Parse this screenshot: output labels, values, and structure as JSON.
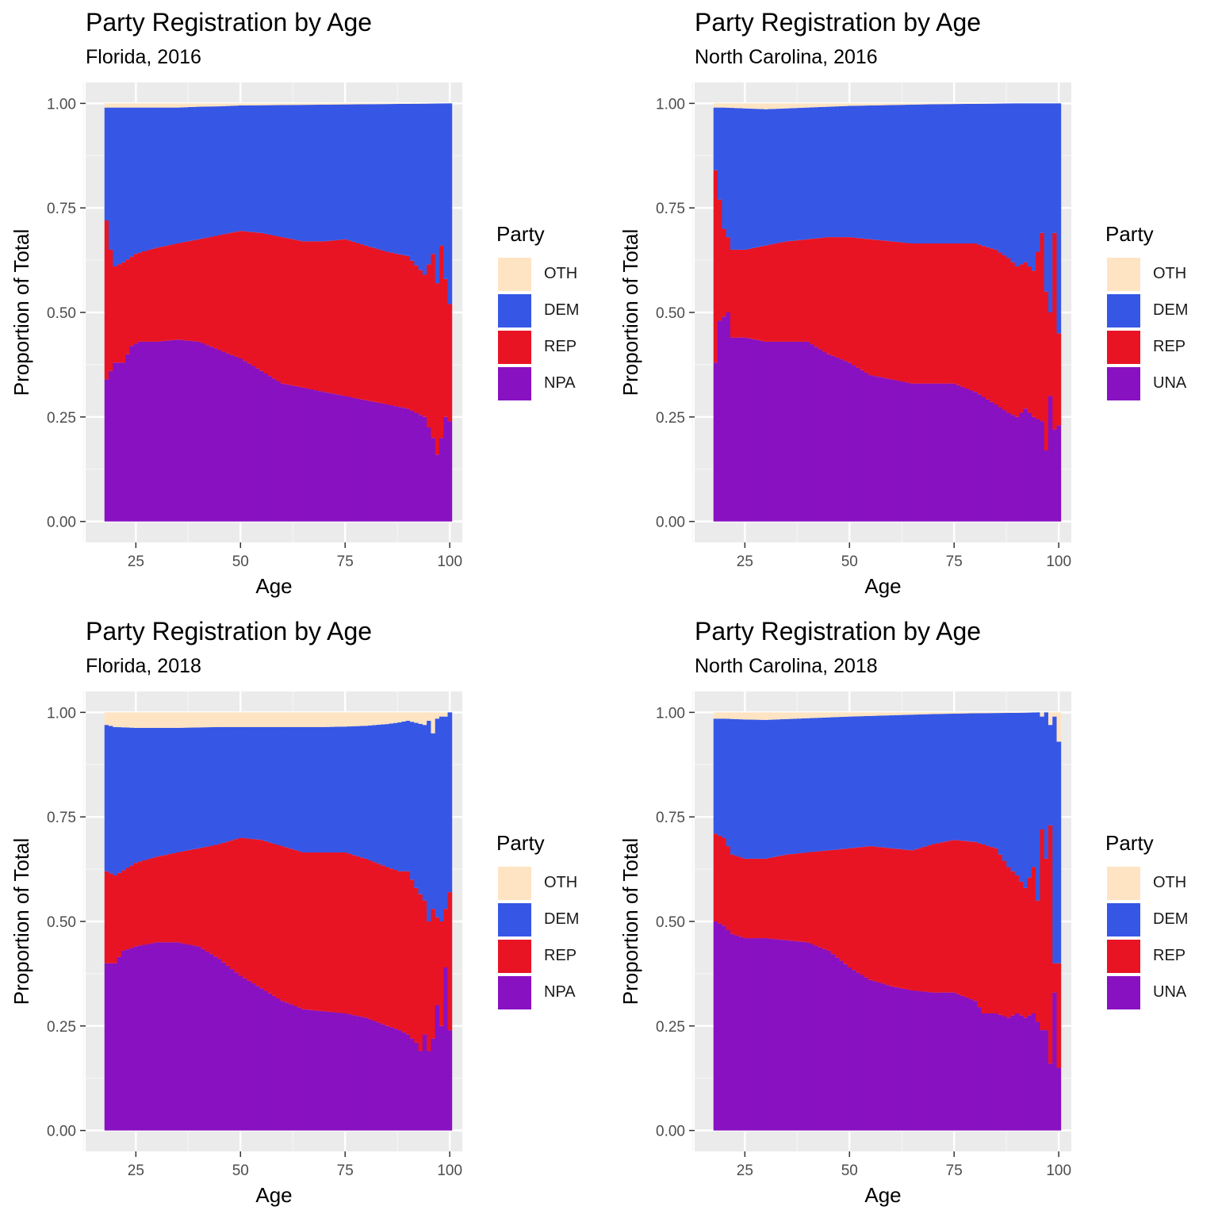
{
  "colors": {
    "OTH": "#FFE4C4",
    "DEM": "#3657E6",
    "REP": "#E81424",
    "NPA": "#8811C2",
    "UNA": "#8811C2"
  },
  "chart_data": [
    {
      "type": "bar",
      "stacked": true,
      "normalized": true,
      "title": "Party Registration by Age",
      "subtitle": "Florida, 2016",
      "xlabel": "Age",
      "ylabel": "Proportion of Total",
      "xlim": [
        13,
        103
      ],
      "ylim": [
        -0.05,
        1.05
      ],
      "xticks": [
        "25",
        "50",
        "75",
        "100"
      ],
      "yticks": [
        "0.00",
        "0.25",
        "0.50",
        "0.75",
        "1.00"
      ],
      "legend_title": "Party",
      "legend_position": "right",
      "legend": [
        "OTH",
        "DEM",
        "REP",
        "NPA"
      ],
      "stack_order_bottom_to_top": [
        "NPA",
        "REP",
        "DEM",
        "OTH"
      ],
      "x_range": [
        18,
        100
      ],
      "boundaries": {
        "first": [
          [
            18,
            0.34
          ],
          [
            20,
            0.38
          ],
          [
            22,
            0.38
          ],
          [
            24,
            0.42
          ],
          [
            26,
            0.43
          ],
          [
            30,
            0.43
          ],
          [
            35,
            0.435
          ],
          [
            40,
            0.43
          ],
          [
            45,
            0.41
          ],
          [
            50,
            0.39
          ],
          [
            55,
            0.36
          ],
          [
            60,
            0.33
          ],
          [
            65,
            0.32
          ],
          [
            70,
            0.31
          ],
          [
            75,
            0.3
          ],
          [
            80,
            0.29
          ],
          [
            85,
            0.28
          ],
          [
            90,
            0.27
          ],
          [
            94,
            0.25
          ],
          [
            96,
            0.2
          ],
          [
            97,
            0.16
          ],
          [
            98,
            0.2
          ],
          [
            99,
            0.25
          ],
          [
            100,
            0.24
          ]
        ],
        "second": [
          [
            18,
            0.72
          ],
          [
            19,
            0.65
          ],
          [
            20,
            0.61
          ],
          [
            22,
            0.62
          ],
          [
            25,
            0.64
          ],
          [
            30,
            0.655
          ],
          [
            35,
            0.665
          ],
          [
            40,
            0.675
          ],
          [
            45,
            0.685
          ],
          [
            50,
            0.695
          ],
          [
            55,
            0.69
          ],
          [
            60,
            0.68
          ],
          [
            65,
            0.67
          ],
          [
            70,
            0.67
          ],
          [
            75,
            0.675
          ],
          [
            80,
            0.66
          ],
          [
            85,
            0.645
          ],
          [
            90,
            0.635
          ],
          [
            94,
            0.59
          ],
          [
            96,
            0.64
          ],
          [
            97,
            0.57
          ],
          [
            98,
            0.66
          ],
          [
            99,
            0.58
          ],
          [
            100,
            0.52
          ]
        ],
        "third": [
          [
            18,
            0.99
          ],
          [
            20,
            0.99
          ],
          [
            25,
            0.99
          ],
          [
            30,
            0.99
          ],
          [
            35,
            0.99
          ],
          [
            40,
            0.992
          ],
          [
            45,
            0.993
          ],
          [
            50,
            0.995
          ],
          [
            60,
            0.996
          ],
          [
            70,
            0.997
          ],
          [
            80,
            0.998
          ],
          [
            90,
            0.999
          ],
          [
            100,
            1.0
          ]
        ]
      }
    },
    {
      "type": "bar",
      "stacked": true,
      "normalized": true,
      "title": "Party Registration by Age",
      "subtitle": "North Carolina, 2016",
      "xlabel": "Age",
      "ylabel": "Proportion of Total",
      "xlim": [
        13,
        103
      ],
      "ylim": [
        -0.05,
        1.05
      ],
      "xticks": [
        "25",
        "50",
        "75",
        "100"
      ],
      "yticks": [
        "0.00",
        "0.25",
        "0.50",
        "0.75",
        "1.00"
      ],
      "legend_title": "Party",
      "legend_position": "right",
      "legend": [
        "OTH",
        "DEM",
        "REP",
        "UNA"
      ],
      "stack_order_bottom_to_top": [
        "UNA",
        "REP",
        "DEM",
        "OTH"
      ],
      "x_range": [
        18,
        100
      ],
      "boundaries": {
        "first": [
          [
            18,
            0.38
          ],
          [
            19,
            0.48
          ],
          [
            20,
            0.49
          ],
          [
            21,
            0.5
          ],
          [
            22,
            0.44
          ],
          [
            25,
            0.44
          ],
          [
            30,
            0.43
          ],
          [
            35,
            0.43
          ],
          [
            40,
            0.43
          ],
          [
            45,
            0.4
          ],
          [
            50,
            0.38
          ],
          [
            55,
            0.35
          ],
          [
            60,
            0.34
          ],
          [
            65,
            0.33
          ],
          [
            70,
            0.33
          ],
          [
            75,
            0.33
          ],
          [
            80,
            0.31
          ],
          [
            85,
            0.28
          ],
          [
            88,
            0.26
          ],
          [
            90,
            0.25
          ],
          [
            92,
            0.27
          ],
          [
            94,
            0.25
          ],
          [
            96,
            0.24
          ],
          [
            97,
            0.17
          ],
          [
            98,
            0.3
          ],
          [
            99,
            0.22
          ],
          [
            100,
            0.23
          ]
        ],
        "second": [
          [
            18,
            0.84
          ],
          [
            19,
            0.77
          ],
          [
            20,
            0.7
          ],
          [
            21,
            0.68
          ],
          [
            22,
            0.65
          ],
          [
            25,
            0.65
          ],
          [
            30,
            0.66
          ],
          [
            35,
            0.67
          ],
          [
            40,
            0.675
          ],
          [
            45,
            0.68
          ],
          [
            50,
            0.68
          ],
          [
            55,
            0.675
          ],
          [
            60,
            0.67
          ],
          [
            65,
            0.665
          ],
          [
            70,
            0.665
          ],
          [
            75,
            0.665
          ],
          [
            80,
            0.665
          ],
          [
            85,
            0.65
          ],
          [
            88,
            0.63
          ],
          [
            90,
            0.61
          ],
          [
            92,
            0.62
          ],
          [
            94,
            0.6
          ],
          [
            96,
            0.69
          ],
          [
            97,
            0.55
          ],
          [
            98,
            0.5
          ],
          [
            99,
            0.69
          ],
          [
            100,
            0.45
          ]
        ],
        "third": [
          [
            18,
            0.99
          ],
          [
            20,
            0.99
          ],
          [
            25,
            0.988
          ],
          [
            30,
            0.986
          ],
          [
            35,
            0.988
          ],
          [
            40,
            0.99
          ],
          [
            45,
            0.992
          ],
          [
            50,
            0.994
          ],
          [
            60,
            0.996
          ],
          [
            70,
            0.998
          ],
          [
            80,
            0.999
          ],
          [
            90,
            1.0
          ],
          [
            100,
            1.0
          ]
        ]
      }
    },
    {
      "type": "bar",
      "stacked": true,
      "normalized": true,
      "title": "Party Registration by Age",
      "subtitle": "Florida, 2018",
      "xlabel": "Age",
      "ylabel": "Proportion of Total",
      "xlim": [
        13,
        103
      ],
      "ylim": [
        -0.05,
        1.05
      ],
      "xticks": [
        "25",
        "50",
        "75",
        "100"
      ],
      "yticks": [
        "0.00",
        "0.25",
        "0.50",
        "0.75",
        "1.00"
      ],
      "legend_title": "Party",
      "legend_position": "right",
      "legend": [
        "OTH",
        "DEM",
        "REP",
        "NPA"
      ],
      "stack_order_bottom_to_top": [
        "NPA",
        "REP",
        "DEM",
        "OTH"
      ],
      "x_range": [
        18,
        100
      ],
      "boundaries": {
        "first": [
          [
            18,
            0.4
          ],
          [
            20,
            0.4
          ],
          [
            22,
            0.43
          ],
          [
            25,
            0.44
          ],
          [
            30,
            0.45
          ],
          [
            35,
            0.45
          ],
          [
            40,
            0.44
          ],
          [
            45,
            0.41
          ],
          [
            50,
            0.37
          ],
          [
            55,
            0.34
          ],
          [
            60,
            0.31
          ],
          [
            65,
            0.29
          ],
          [
            70,
            0.285
          ],
          [
            75,
            0.28
          ],
          [
            80,
            0.27
          ],
          [
            85,
            0.25
          ],
          [
            88,
            0.24
          ],
          [
            90,
            0.23
          ],
          [
            92,
            0.21
          ],
          [
            93,
            0.19
          ],
          [
            94,
            0.23
          ],
          [
            95,
            0.19
          ],
          [
            96,
            0.22
          ],
          [
            97,
            0.3
          ],
          [
            98,
            0.25
          ],
          [
            99,
            0.39
          ],
          [
            100,
            0.24
          ]
        ],
        "second": [
          [
            18,
            0.62
          ],
          [
            20,
            0.61
          ],
          [
            25,
            0.64
          ],
          [
            30,
            0.655
          ],
          [
            35,
            0.665
          ],
          [
            40,
            0.675
          ],
          [
            45,
            0.685
          ],
          [
            50,
            0.7
          ],
          [
            55,
            0.695
          ],
          [
            60,
            0.68
          ],
          [
            65,
            0.665
          ],
          [
            70,
            0.665
          ],
          [
            75,
            0.665
          ],
          [
            80,
            0.65
          ],
          [
            85,
            0.63
          ],
          [
            88,
            0.62
          ],
          [
            90,
            0.62
          ],
          [
            92,
            0.58
          ],
          [
            94,
            0.55
          ],
          [
            95,
            0.5
          ],
          [
            96,
            0.53
          ],
          [
            97,
            0.51
          ],
          [
            98,
            0.5
          ],
          [
            99,
            0.53
          ],
          [
            100,
            0.57
          ]
        ],
        "third": [
          [
            18,
            0.97
          ],
          [
            20,
            0.965
          ],
          [
            25,
            0.963
          ],
          [
            30,
            0.963
          ],
          [
            35,
            0.963
          ],
          [
            40,
            0.964
          ],
          [
            45,
            0.965
          ],
          [
            50,
            0.965
          ],
          [
            60,
            0.965
          ],
          [
            70,
            0.965
          ],
          [
            75,
            0.966
          ],
          [
            80,
            0.968
          ],
          [
            85,
            0.972
          ],
          [
            88,
            0.976
          ],
          [
            90,
            0.98
          ],
          [
            92,
            0.975
          ],
          [
            94,
            0.97
          ],
          [
            95,
            0.98
          ],
          [
            96,
            0.95
          ],
          [
            97,
            0.985
          ],
          [
            98,
            0.99
          ],
          [
            99,
            0.99
          ],
          [
            100,
            1.0
          ]
        ]
      }
    },
    {
      "type": "bar",
      "stacked": true,
      "normalized": true,
      "title": "Party Registration by Age",
      "subtitle": "North Carolina, 2018",
      "xlabel": "Age",
      "ylabel": "Proportion of Total",
      "xlim": [
        13,
        103
      ],
      "ylim": [
        -0.05,
        1.05
      ],
      "xticks": [
        "25",
        "50",
        "75",
        "100"
      ],
      "yticks": [
        "0.00",
        "0.25",
        "0.50",
        "0.75",
        "1.00"
      ],
      "legend_title": "Party",
      "legend_position": "right",
      "legend": [
        "OTH",
        "DEM",
        "REP",
        "UNA"
      ],
      "stack_order_bottom_to_top": [
        "UNA",
        "REP",
        "DEM",
        "OTH"
      ],
      "x_range": [
        18,
        100
      ],
      "boundaries": {
        "first": [
          [
            18,
            0.5
          ],
          [
            20,
            0.49
          ],
          [
            22,
            0.47
          ],
          [
            25,
            0.46
          ],
          [
            30,
            0.46
          ],
          [
            35,
            0.455
          ],
          [
            40,
            0.45
          ],
          [
            45,
            0.43
          ],
          [
            50,
            0.39
          ],
          [
            55,
            0.36
          ],
          [
            60,
            0.345
          ],
          [
            65,
            0.335
          ],
          [
            70,
            0.33
          ],
          [
            75,
            0.33
          ],
          [
            80,
            0.31
          ],
          [
            82,
            0.28
          ],
          [
            85,
            0.28
          ],
          [
            88,
            0.27
          ],
          [
            90,
            0.28
          ],
          [
            92,
            0.27
          ],
          [
            94,
            0.28
          ],
          [
            96,
            0.24
          ],
          [
            97,
            0.24
          ],
          [
            98,
            0.16
          ],
          [
            99,
            0.33
          ],
          [
            100,
            0.15
          ]
        ],
        "second": [
          [
            18,
            0.71
          ],
          [
            20,
            0.7
          ],
          [
            22,
            0.66
          ],
          [
            25,
            0.65
          ],
          [
            30,
            0.65
          ],
          [
            35,
            0.66
          ],
          [
            40,
            0.665
          ],
          [
            45,
            0.67
          ],
          [
            50,
            0.675
          ],
          [
            55,
            0.68
          ],
          [
            60,
            0.675
          ],
          [
            65,
            0.67
          ],
          [
            70,
            0.685
          ],
          [
            75,
            0.695
          ],
          [
            80,
            0.69
          ],
          [
            85,
            0.675
          ],
          [
            88,
            0.63
          ],
          [
            90,
            0.61
          ],
          [
            92,
            0.58
          ],
          [
            94,
            0.63
          ],
          [
            95,
            0.55
          ],
          [
            96,
            0.72
          ],
          [
            97,
            0.65
          ],
          [
            98,
            0.73
          ],
          [
            99,
            0.4
          ],
          [
            100,
            0.4
          ]
        ],
        "third": [
          [
            18,
            0.985
          ],
          [
            20,
            0.985
          ],
          [
            25,
            0.983
          ],
          [
            30,
            0.982
          ],
          [
            35,
            0.984
          ],
          [
            40,
            0.986
          ],
          [
            45,
            0.988
          ],
          [
            50,
            0.99
          ],
          [
            60,
            0.993
          ],
          [
            70,
            0.996
          ],
          [
            80,
            0.998
          ],
          [
            90,
            0.999
          ],
          [
            95,
            1.0
          ],
          [
            96,
            0.99
          ],
          [
            97,
            1.0
          ],
          [
            98,
            0.97
          ],
          [
            99,
            0.99
          ],
          [
            100,
            0.93
          ]
        ]
      }
    }
  ]
}
